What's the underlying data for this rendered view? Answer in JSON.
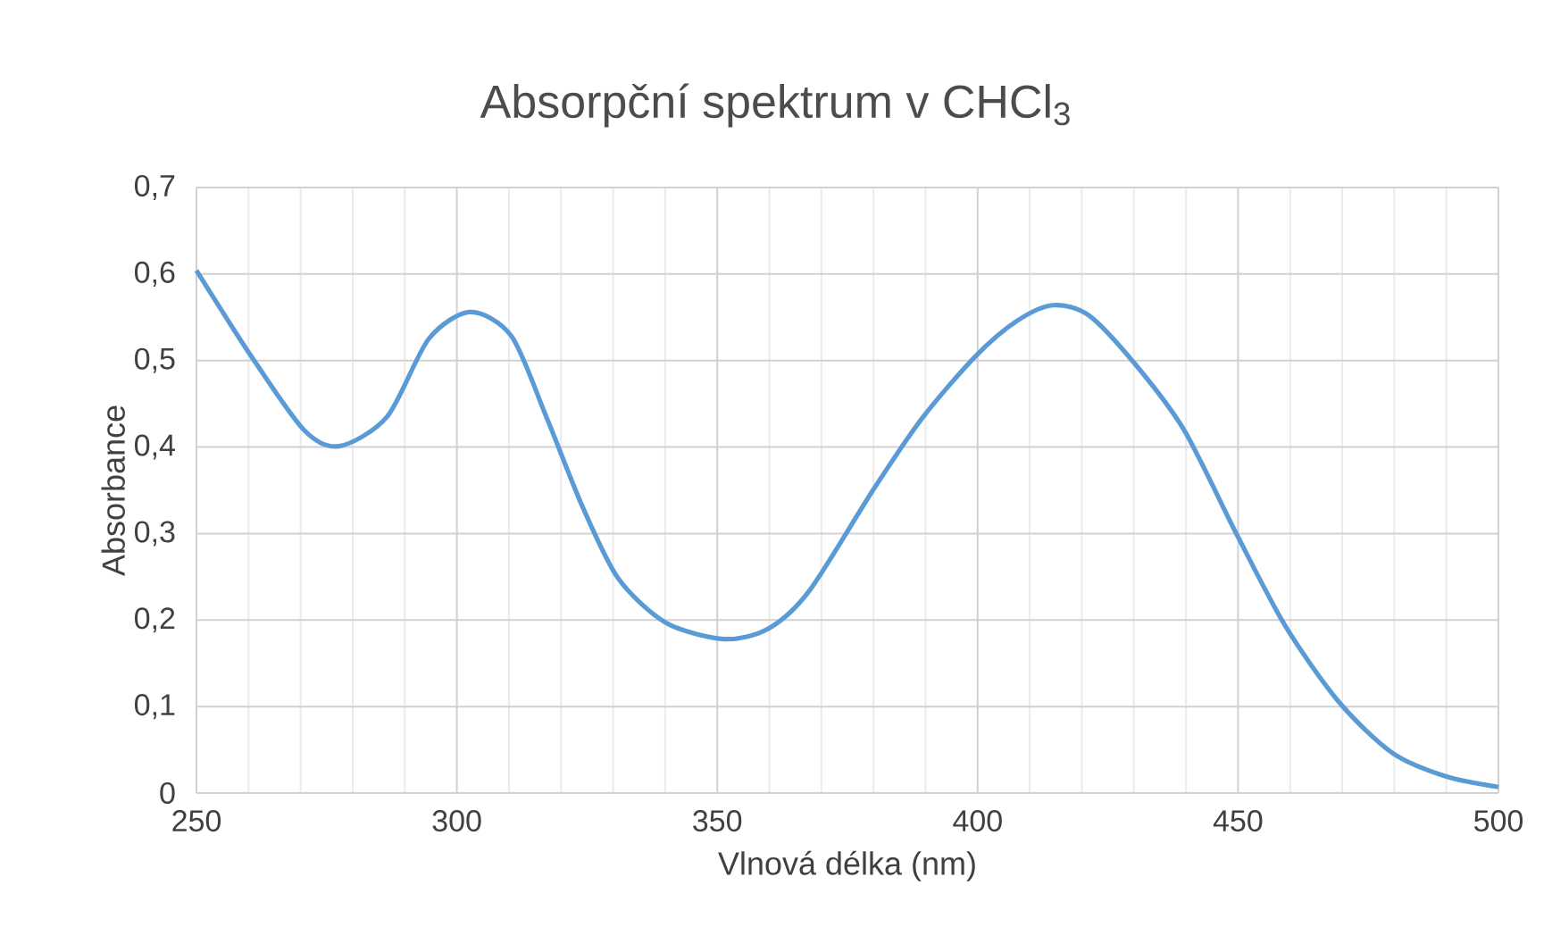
{
  "chart_data": {
    "type": "line",
    "title": "Absorpční spektrum v CHCl$_{3}$",
    "xlabel": "Vlnová délka (nm)",
    "ylabel": "Absorbance",
    "x": [
      250,
      260.3,
      270.6,
      277.4,
      286.6,
      294.6,
      302.6,
      310.5,
      317.3,
      324.2,
      331,
      340.1,
      351.2,
      359.8,
      367.7,
      380,
      389.3,
      399.6,
      407.6,
      414.5,
      421.4,
      430.5,
      439.7,
      450,
      459.1,
      469.4,
      479.7,
      490,
      500
    ],
    "series": [
      {
        "color": "#5b9bd5",
        "values": [
          0.604,
          0.507,
          0.42,
          0.401,
          0.435,
          0.525,
          0.556,
          0.528,
          0.433,
          0.33,
          0.248,
          0.197,
          0.178,
          0.19,
          0.234,
          0.351,
          0.433,
          0.505,
          0.546,
          0.564,
          0.552,
          0.494,
          0.419,
          0.296,
          0.193,
          0.105,
          0.046,
          0.019,
          0.007
        ]
      }
    ],
    "xlim": [
      250,
      500
    ],
    "ylim": [
      0,
      0.7
    ],
    "xticks": [
      250,
      300,
      350,
      400,
      450,
      500
    ],
    "yticks": [
      0,
      {
        "value": 0.1,
        "label": "0,1"
      },
      {
        "value": 0.2,
        "label": "0,2"
      },
      {
        "value": 0.3,
        "label": "0,3"
      },
      {
        "value": 0.4,
        "label": "0,4"
      },
      {
        "value": 0.5,
        "label": "0,5"
      },
      {
        "value": 0.6,
        "label": "0,6"
      },
      {
        "value": 0.7,
        "label": "0,7"
      }
    ],
    "grid": true,
    "line_style": "solid"
  }
}
